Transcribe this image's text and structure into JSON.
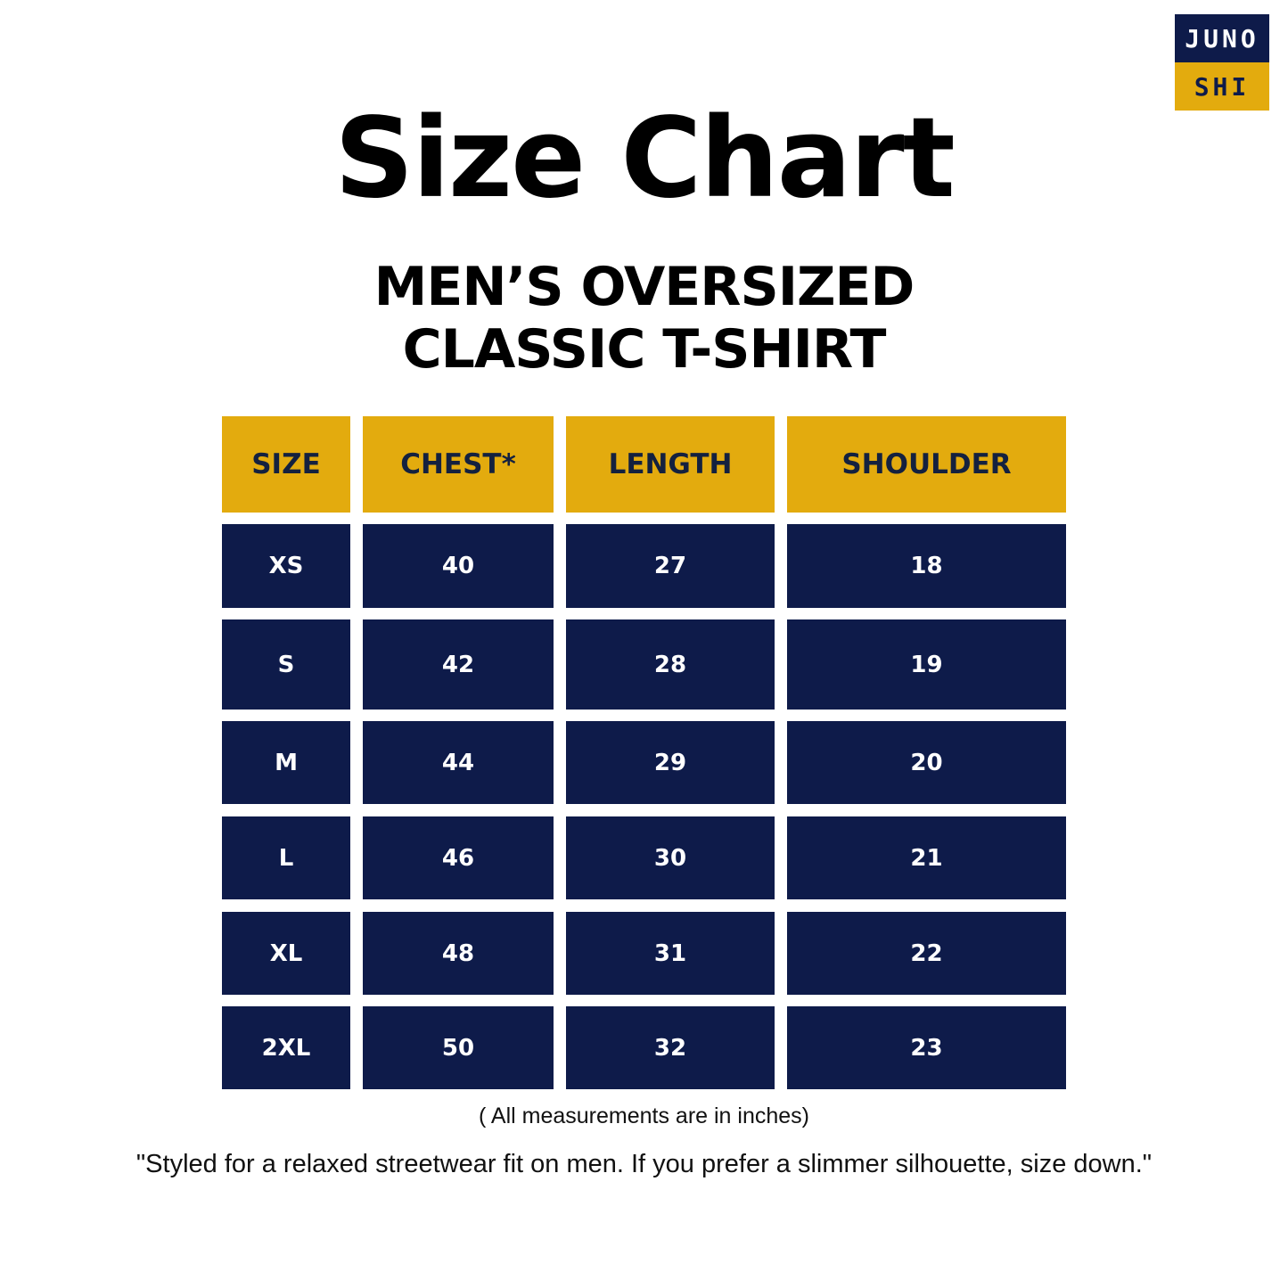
{
  "logo": {
    "top": "JUNO",
    "bottom": "SHI"
  },
  "title": "Size Chart",
  "subtitle": {
    "line1": "MEN’S OVERSIZED",
    "line2": "CLASSIC T-SHIRT"
  },
  "table": {
    "headers": [
      "SIZE",
      "CHEST*",
      "LENGTH",
      "SHOULDER"
    ],
    "rows": [
      [
        "XS",
        "40",
        "27",
        "18"
      ],
      [
        "S",
        "42",
        "28",
        "19"
      ],
      [
        "M",
        "44",
        "29",
        "20"
      ],
      [
        "L",
        "46",
        "30",
        "21"
      ],
      [
        "XL",
        "48",
        "31",
        "22"
      ],
      [
        "2XL",
        "50",
        "32",
        "23"
      ]
    ]
  },
  "note": "( All measurements are in inches)",
  "quote": "\"Styled for a relaxed streetwear fit on men. If you prefer a slimmer silhouette, size down.\"",
  "colors": {
    "navy": "#0e1b4a",
    "gold": "#e3ab0e",
    "background": "#ffffff"
  }
}
